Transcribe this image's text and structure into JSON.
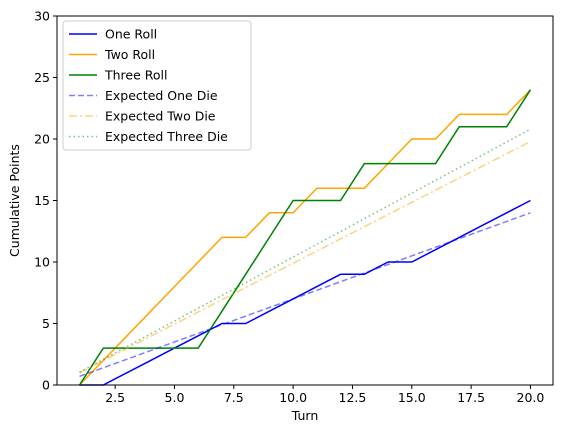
{
  "chart_data": {
    "type": "line",
    "xlabel": "Turn",
    "ylabel": "Cumulative Points",
    "xlim": [
      0.05,
      20.95
    ],
    "ylim": [
      0,
      30
    ],
    "xticks": [
      2.5,
      5.0,
      7.5,
      10.0,
      12.5,
      15.0,
      17.5,
      20.0
    ],
    "xtick_labels": [
      "2.5",
      "5.0",
      "7.5",
      "10.0",
      "12.5",
      "15.0",
      "17.5",
      "20.0"
    ],
    "yticks": [
      0,
      5,
      10,
      15,
      20,
      25,
      30
    ],
    "ytick_labels": [
      "0",
      "5",
      "10",
      "15",
      "20",
      "25",
      "30"
    ],
    "grid": false,
    "legend_position": "top-left",
    "x": [
      1,
      2,
      3,
      4,
      5,
      6,
      7,
      8,
      9,
      10,
      11,
      12,
      13,
      14,
      15,
      16,
      17,
      18,
      19,
      20
    ],
    "series": [
      {
        "name": "One Roll",
        "color": "#0000ff",
        "style": "solid",
        "opacity": 1,
        "y": [
          0,
          0,
          1,
          2,
          3,
          4,
          5,
          5,
          6,
          7,
          8,
          9,
          9,
          10,
          10,
          11,
          12,
          13,
          14,
          15
        ]
      },
      {
        "name": "Two Roll",
        "color": "#ffa500",
        "style": "solid",
        "opacity": 1,
        "y": [
          0,
          2,
          4,
          6,
          8,
          10,
          12,
          12,
          14,
          14,
          16,
          16,
          16,
          18,
          20,
          20,
          22,
          22,
          22,
          24
        ]
      },
      {
        "name": "Three Roll",
        "color": "#008000",
        "style": "solid",
        "opacity": 1,
        "y": [
          0,
          3,
          3,
          3,
          3,
          3,
          6,
          9,
          12,
          15,
          15,
          15,
          18,
          18,
          18,
          18,
          21,
          21,
          21,
          24
        ]
      },
      {
        "name": "Expected One Die",
        "color": "#0000ff",
        "style": "dashed",
        "opacity": 0.5,
        "y": [
          0.7,
          1.4,
          2.1,
          2.8,
          3.5,
          4.2,
          4.9,
          5.6,
          6.3,
          7.0,
          7.7,
          8.4,
          9.1,
          9.8,
          10.5,
          11.2,
          11.9,
          12.6,
          13.3,
          14.0
        ]
      },
      {
        "name": "Expected Two Die",
        "color": "#ffa500",
        "style": "dashdot",
        "opacity": 0.5,
        "y": [
          0.99,
          1.98,
          2.97,
          3.96,
          4.95,
          5.94,
          6.93,
          7.92,
          8.91,
          9.9,
          10.89,
          11.88,
          12.87,
          13.86,
          14.85,
          15.84,
          16.83,
          17.82,
          18.81,
          19.8
        ]
      },
      {
        "name": "Expected Three Die",
        "color": "#008000",
        "style": "dotted",
        "opacity": 0.5,
        "y": [
          1.04,
          2.08,
          3.12,
          4.16,
          5.2,
          6.24,
          7.28,
          8.32,
          9.36,
          10.4,
          11.44,
          12.48,
          13.52,
          14.56,
          15.6,
          16.64,
          17.68,
          18.72,
          19.76,
          20.8
        ]
      }
    ]
  }
}
